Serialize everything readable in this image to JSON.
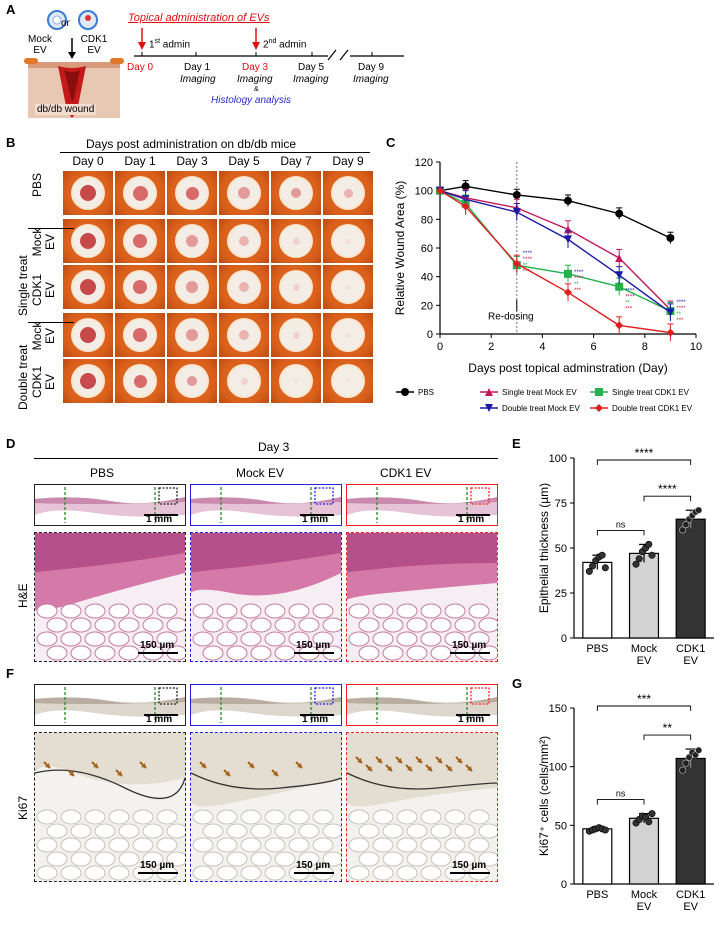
{
  "panel_letters": {
    "a": "A",
    "b": "B",
    "c": "C",
    "d": "D",
    "e": "E",
    "f": "F",
    "g": "G"
  },
  "panel_a": {
    "or_label": "or",
    "mock_line1": "Mock",
    "mock_line2": "EV",
    "cdk1_line1": "CDK1",
    "cdk1_line2": "EV",
    "wound_label": "db/db wound",
    "topical_title": "Topical administration of EVs",
    "admin1_num": "1",
    "admin1_sup": "st",
    "admin1_rest": " admin",
    "admin2_num": "2",
    "admin2_sup": "nd",
    "admin2_rest": " admin",
    "day0": "Day 0",
    "day1": "Day 1",
    "day3": "Day 3",
    "day5": "Day 5",
    "day9": "Day 9",
    "imaging": "Imaging",
    "amp": "&",
    "histology": "Histology analysis"
  },
  "panel_b": {
    "title": "Days post administration on db/db mice",
    "day_headers": [
      "Day 0",
      "Day 1",
      "Day 3",
      "Day 5",
      "Day 7",
      "Day 9"
    ],
    "row_labels": [
      {
        "line1": "PBS",
        "line2": ""
      },
      {
        "line1": "Mock",
        "line2": "EV"
      },
      {
        "line1": "CDK1",
        "line2": "EV"
      },
      {
        "line1": "Mock",
        "line2": "EV"
      },
      {
        "line1": "CDK1",
        "line2": "EV"
      }
    ],
    "group_single": "Single treat",
    "group_double": "Double treat"
  },
  "chart_data": [
    {
      "id": "C",
      "type": "line",
      "title": "",
      "xlabel": "Days post topical adminstration (Day)",
      "ylabel": "Relative Wound Area (%)",
      "xlim": [
        0,
        10
      ],
      "ylim": [
        0,
        120
      ],
      "xticks": [
        "0",
        "2",
        "4",
        "6",
        "8",
        "10"
      ],
      "yticks": [
        "0",
        "20",
        "40",
        "60",
        "80",
        "100",
        "120"
      ],
      "annotation": "Re-dosing",
      "x": [
        0,
        1,
        3,
        5,
        7,
        9
      ],
      "series": [
        {
          "name": "PBS",
          "color": "#000000",
          "marker": "circle",
          "values": [
            100,
            103,
            97,
            93,
            84,
            67
          ]
        },
        {
          "name": "Single treat Mock EV",
          "color": "#c2185b",
          "marker": "triangle-up",
          "values": [
            100,
            95,
            88,
            73,
            53,
            17
          ]
        },
        {
          "name": "Single treat CDK1 EV",
          "color": "#22b14c",
          "marker": "square",
          "values": [
            100,
            91,
            48,
            42,
            33,
            16
          ]
        },
        {
          "name": "Double treat Mock EV",
          "color": "#1a1aa6",
          "marker": "triangle-down",
          "values": [
            100,
            94,
            85,
            66,
            41,
            15
          ]
        },
        {
          "name": "Double treat CDK1 EV",
          "color": "#e02020",
          "marker": "diamond",
          "values": [
            100,
            89,
            49,
            29,
            6,
            1
          ]
        }
      ],
      "significance": [
        "****",
        "****",
        "**",
        "***",
        "*"
      ]
    },
    {
      "id": "E",
      "type": "bar",
      "title": "",
      "categories": [
        "PBS",
        "Mock EV",
        "CDK1 EV"
      ],
      "category_lines": [
        [
          "PBS"
        ],
        [
          "Mock",
          "EV"
        ],
        [
          "CDK1",
          "EV"
        ]
      ],
      "values": [
        42,
        47,
        66
      ],
      "errors": [
        4,
        5,
        5
      ],
      "points": [
        [
          37,
          40,
          43,
          45,
          46,
          39
        ],
        [
          41,
          44,
          48,
          50,
          52,
          46
        ],
        [
          60,
          63,
          66,
          68,
          70,
          71
        ]
      ],
      "colors": [
        "#ffffff",
        "#d3d3d3",
        "#333333"
      ],
      "ylabel": "Epithelial thickness (µm)",
      "ylim": [
        0,
        100
      ],
      "yticks": [
        "0",
        "25",
        "50",
        "75",
        "100"
      ],
      "comparisons": [
        {
          "pair": [
            0,
            1
          ],
          "label": "ns"
        },
        {
          "pair": [
            1,
            2
          ],
          "label": "****"
        },
        {
          "pair": [
            0,
            2
          ],
          "label": "****"
        }
      ]
    },
    {
      "id": "G",
      "type": "bar",
      "title": "",
      "categories": [
        "PBS",
        "Mock EV",
        "CDK1 EV"
      ],
      "category_lines": [
        [
          "PBS"
        ],
        [
          "Mock",
          "EV"
        ],
        [
          "CDK1",
          "EV"
        ]
      ],
      "values": [
        47,
        56,
        107
      ],
      "errors": [
        2,
        4,
        8
      ],
      "points": [
        [
          45,
          46,
          47,
          48,
          47,
          46
        ],
        [
          52,
          55,
          58,
          57,
          53,
          60
        ],
        [
          97,
          103,
          108,
          112,
          110,
          114
        ]
      ],
      "colors": [
        "#ffffff",
        "#d3d3d3",
        "#333333"
      ],
      "ylabel": "Ki67⁺ cells (cells/mm²)",
      "ylim": [
        0,
        150
      ],
      "yticks": [
        "0",
        "50",
        "100",
        "150"
      ],
      "comparisons": [
        {
          "pair": [
            0,
            1
          ],
          "label": "ns"
        },
        {
          "pair": [
            1,
            2
          ],
          "label": "**"
        },
        {
          "pair": [
            0,
            2
          ],
          "label": "***"
        }
      ]
    }
  ],
  "panel_d": {
    "day_title": "Day 3",
    "col_titles": [
      "PBS",
      "Mock EV",
      "CDK1 EV"
    ],
    "row_label": "H&E",
    "scale_low": "1 mm",
    "scale_high": "150 µm"
  },
  "panel_f": {
    "row_label": "Ki67",
    "scale_low": "1 mm",
    "scale_high": "150 µm"
  },
  "colors": {
    "pbs_frame": "#222222",
    "mock_frame": "#2222dd",
    "cdk1_frame": "#ee2222",
    "accent_red": "#e01010",
    "histology_blue": "#2a2ad0"
  }
}
